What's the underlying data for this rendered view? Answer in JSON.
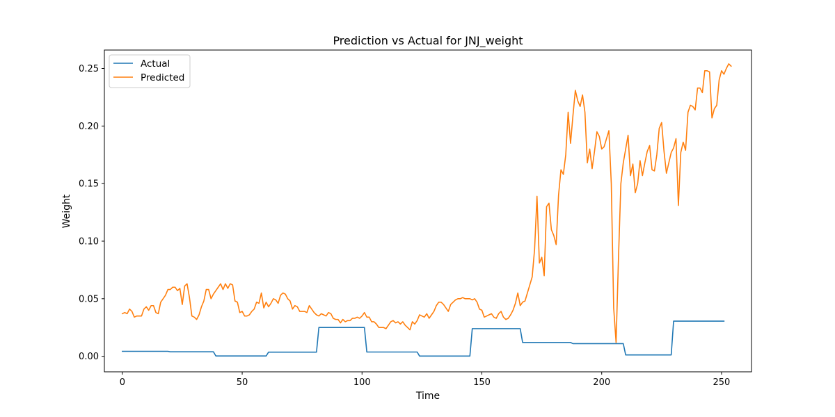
{
  "chart_data": {
    "type": "line",
    "title": "Prediction vs Actual for JNJ_weight",
    "xlabel": "Time",
    "ylabel": "Weight",
    "xlim": [
      -7.5,
      262.5
    ],
    "ylim": [
      -0.0135,
      0.266
    ],
    "xticks": [
      0,
      50,
      100,
      150,
      200,
      250
    ],
    "yticks": [
      0.0,
      0.05,
      0.1,
      0.15,
      0.2,
      0.25
    ],
    "ytick_labels": [
      "0.00",
      "0.05",
      "0.10",
      "0.15",
      "0.20",
      "0.25"
    ],
    "grid": false,
    "legend_position": "upper left",
    "series": [
      {
        "name": "Actual",
        "color": "#1f77b4",
        "points": [
          [
            0,
            0.0043
          ],
          [
            19,
            0.0043
          ],
          [
            20,
            0.0039
          ],
          [
            38,
            0.0039
          ],
          [
            39,
            0.0003
          ],
          [
            60,
            0.0003
          ],
          [
            61,
            0.0036
          ],
          [
            81,
            0.0036
          ],
          [
            82,
            0.025
          ],
          [
            101,
            0.025
          ],
          [
            102,
            0.0037
          ],
          [
            123,
            0.0037
          ],
          [
            124,
            0.0002
          ],
          [
            145,
            0.0002
          ],
          [
            146,
            0.024
          ],
          [
            166,
            0.024
          ],
          [
            167,
            0.012
          ],
          [
            187,
            0.012
          ],
          [
            188,
            0.011
          ],
          [
            209,
            0.011
          ],
          [
            210,
            0.0012
          ],
          [
            229,
            0.0012
          ],
          [
            230,
            0.0305
          ],
          [
            251,
            0.0305
          ]
        ]
      },
      {
        "name": "Predicted",
        "color": "#ff7f0e",
        "values": [
          0.037,
          0.038,
          0.037,
          0.041,
          0.039,
          0.034,
          0.035,
          0.035,
          0.035,
          0.041,
          0.043,
          0.04,
          0.044,
          0.044,
          0.038,
          0.037,
          0.047,
          0.05,
          0.053,
          0.058,
          0.058,
          0.06,
          0.06,
          0.057,
          0.059,
          0.045,
          0.061,
          0.063,
          0.051,
          0.035,
          0.034,
          0.032,
          0.036,
          0.043,
          0.048,
          0.058,
          0.058,
          0.05,
          0.054,
          0.057,
          0.06,
          0.063,
          0.058,
          0.063,
          0.059,
          0.063,
          0.062,
          0.048,
          0.047,
          0.038,
          0.039,
          0.035,
          0.035,
          0.036,
          0.039,
          0.041,
          0.047,
          0.046,
          0.055,
          0.042,
          0.047,
          0.043,
          0.046,
          0.05,
          0.049,
          0.046,
          0.053,
          0.055,
          0.054,
          0.05,
          0.048,
          0.041,
          0.044,
          0.043,
          0.039,
          0.039,
          0.039,
          0.038,
          0.044,
          0.041,
          0.038,
          0.036,
          0.035,
          0.037,
          0.036,
          0.035,
          0.038,
          0.037,
          0.033,
          0.032,
          0.032,
          0.029,
          0.032,
          0.03,
          0.031,
          0.031,
          0.033,
          0.033,
          0.034,
          0.033,
          0.035,
          0.038,
          0.034,
          0.034,
          0.03,
          0.03,
          0.028,
          0.025,
          0.025,
          0.025,
          0.024,
          0.027,
          0.03,
          0.031,
          0.029,
          0.03,
          0.028,
          0.03,
          0.027,
          0.025,
          0.023,
          0.03,
          0.028,
          0.031,
          0.036,
          0.035,
          0.034,
          0.037,
          0.033,
          0.036,
          0.039,
          0.044,
          0.047,
          0.047,
          0.045,
          0.042,
          0.039,
          0.045,
          0.047,
          0.049,
          0.05,
          0.05,
          0.051,
          0.05,
          0.05,
          0.05,
          0.049,
          0.05,
          0.047,
          0.041,
          0.04,
          0.034,
          0.035,
          0.036,
          0.037,
          0.034,
          0.033,
          0.037,
          0.039,
          0.034,
          0.032,
          0.033,
          0.036,
          0.04,
          0.046,
          0.055,
          0.044,
          0.047,
          0.048,
          0.055,
          0.062,
          0.069,
          0.093,
          0.139,
          0.081,
          0.086,
          0.07,
          0.13,
          0.133,
          0.11,
          0.105,
          0.097,
          0.14,
          0.162,
          0.158,
          0.175,
          0.212,
          0.185,
          0.209,
          0.231,
          0.222,
          0.217,
          0.227,
          0.212,
          0.168,
          0.18,
          0.163,
          0.178,
          0.195,
          0.191,
          0.18,
          0.182,
          0.189,
          0.196,
          0.15,
          0.042,
          0.012,
          0.085,
          0.15,
          0.168,
          0.18,
          0.192,
          0.157,
          0.167,
          0.142,
          0.15,
          0.17,
          0.157,
          0.168,
          0.178,
          0.183,
          0.162,
          0.161,
          0.175,
          0.198,
          0.203,
          0.178,
          0.159,
          0.168,
          0.177,
          0.181,
          0.189,
          0.131,
          0.177,
          0.186,
          0.179,
          0.212,
          0.218,
          0.217,
          0.214,
          0.233,
          0.233,
          0.229,
          0.248,
          0.248,
          0.247,
          0.207,
          0.215,
          0.218,
          0.24,
          0.248,
          0.245,
          0.25,
          0.254,
          0.252
        ]
      }
    ]
  }
}
